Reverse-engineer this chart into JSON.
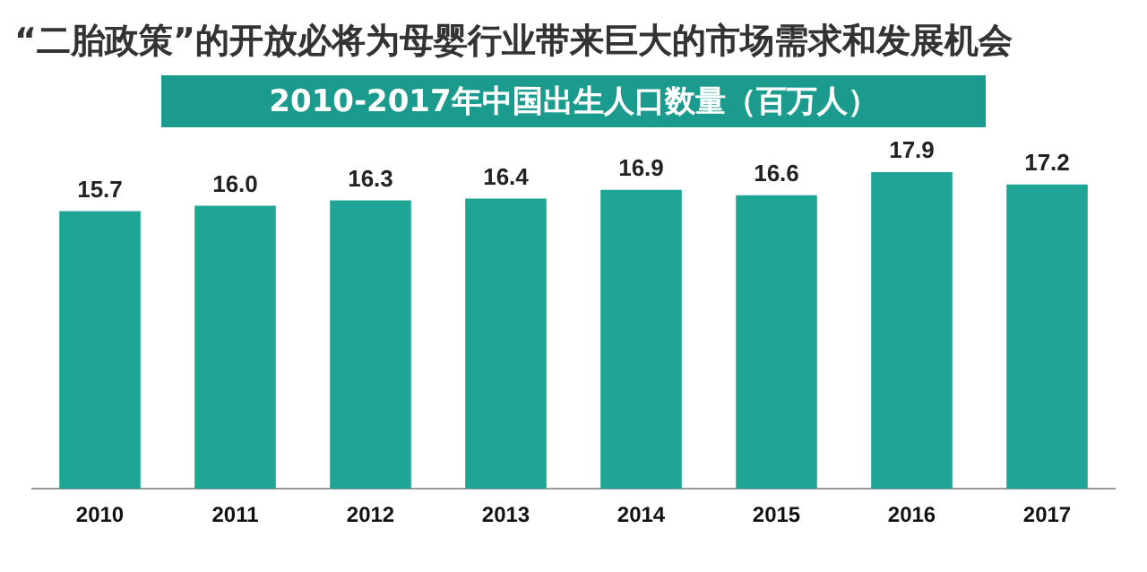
{
  "chart_data": {
    "type": "bar",
    "title": "“二胎政策”的开放必将为母婴行业带来巨大的市场需求和发展机会",
    "subtitle": "2010-2017年中国出生人口数量（百万人）",
    "categories": [
      "2010",
      "2011",
      "2012",
      "2013",
      "2014",
      "2015",
      "2016",
      "2017"
    ],
    "values": [
      15.7,
      16.0,
      16.3,
      16.4,
      16.9,
      16.6,
      17.9,
      17.2
    ],
    "value_labels": [
      "15.7",
      "16.0",
      "16.3",
      "16.4",
      "16.9",
      "16.6",
      "17.9",
      "17.2"
    ],
    "color": "#1fa596",
    "grid": false,
    "legend": false
  }
}
